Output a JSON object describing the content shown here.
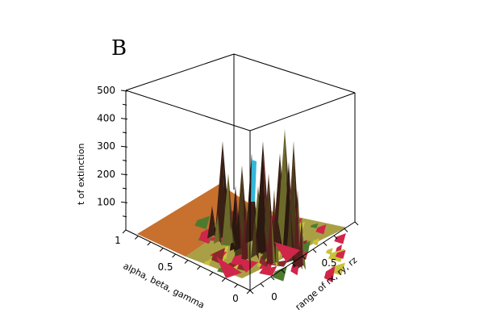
{
  "panel_label": "B",
  "chart_data": {
    "type": "surface",
    "title": "",
    "zlabel": "t of extinction",
    "xlabel": "alpha, beta, gamma",
    "ylabel": "range of rx, ry, rz",
    "zticks": [
      "500",
      "400",
      "300",
      "200",
      "100"
    ],
    "xticks": [
      "1",
      "0.5",
      "0"
    ],
    "yticks": [
      "0",
      "0.5"
    ],
    "zlim": [
      0,
      500
    ],
    "xlim": [
      0,
      1
    ],
    "ylim": [
      0,
      1
    ],
    "colors": {
      "surface_base": "#c8702e",
      "peak_dark": "#3a1f14",
      "peak_olive": "#6b6a2a",
      "red": "#d0264a",
      "yellow": "#c9c23a",
      "green": "#4f7a2e",
      "cyan": "#35b6d8"
    }
  }
}
